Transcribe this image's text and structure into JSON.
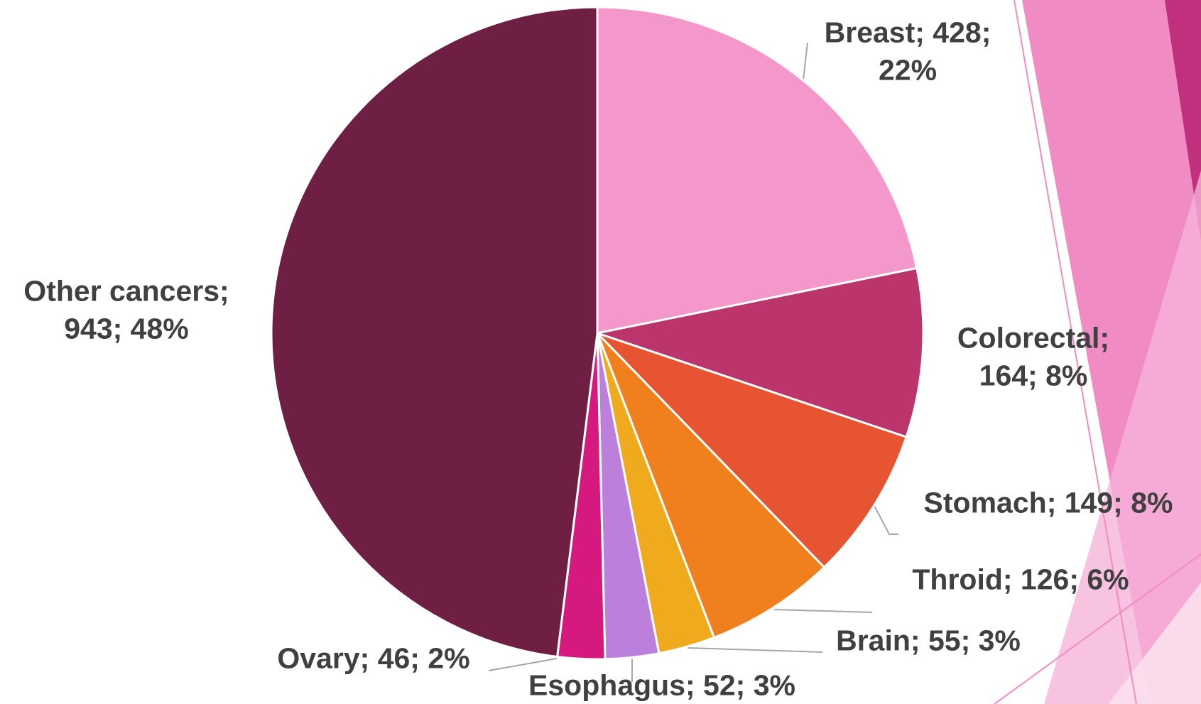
{
  "chart_data": {
    "type": "pie",
    "values": [
      428,
      164,
      149,
      126,
      55,
      52,
      46,
      943
    ],
    "value_labels": [
      "Breast; 428; 22%",
      "Colorectal; 164; 8%",
      "Stomach; 149; 8%",
      "Throid; 126; 6%",
      "Brain; 55; 3%",
      "Esophagus; 52; 3%",
      "Ovary; 46; 2%",
      "Other cancers; 943; 48%"
    ],
    "colors": [
      "#f497cb",
      "#bb346c",
      "#e65432",
      "#f0801e",
      "#f0aa1e",
      "#bc7fdc",
      "#d6197f",
      "#6f1f43"
    ]
  }
}
